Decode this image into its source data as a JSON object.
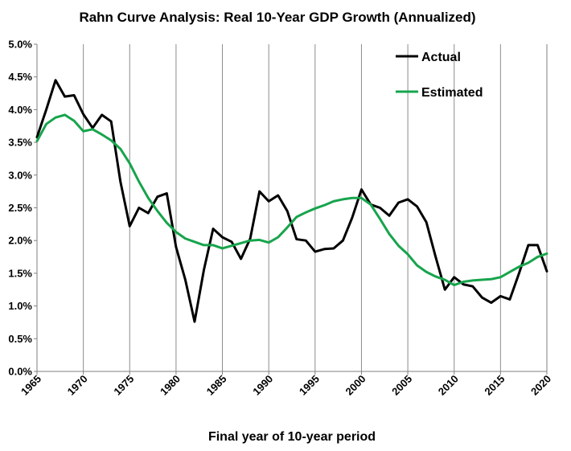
{
  "chart_data": {
    "type": "line",
    "title": "Rahn Curve Analysis: Real 10-Year GDP Growth (Annualized)",
    "xlabel": "Final year of 10-year period",
    "ylabel": "",
    "xlim": [
      1965,
      2020
    ],
    "ylim": [
      0,
      5
    ],
    "y_ticks": [
      "0.0%",
      "0.5%",
      "1.0%",
      "1.5%",
      "2.0%",
      "2.5%",
      "3.0%",
      "3.5%",
      "4.0%",
      "4.5%",
      "5.0%"
    ],
    "x_ticks": [
      "1965",
      "1970",
      "1975",
      "1980",
      "1985",
      "1990",
      "1995",
      "2000",
      "2005",
      "2010",
      "2015",
      "2020"
    ],
    "grid": "vertical",
    "legend_position": "top-right",
    "series": [
      {
        "name": "Actual",
        "color": "#000000",
        "x": [
          1965,
          1966,
          1967,
          1968,
          1969,
          1970,
          1971,
          1972,
          1973,
          1974,
          1975,
          1976,
          1977,
          1978,
          1979,
          1980,
          1981,
          1982,
          1983,
          1984,
          1985,
          1986,
          1987,
          1988,
          1989,
          1990,
          1991,
          1992,
          1993,
          1994,
          1995,
          1996,
          1997,
          1998,
          1999,
          2000,
          2001,
          2002,
          2003,
          2004,
          2005,
          2006,
          2007,
          2008,
          2009,
          2010,
          2011,
          2012,
          2013,
          2014,
          2015,
          2016,
          2017,
          2018,
          2019,
          2020
        ],
        "values": [
          3.58,
          4.0,
          4.45,
          4.2,
          4.22,
          3.93,
          3.72,
          3.92,
          3.82,
          2.9,
          2.22,
          2.5,
          2.42,
          2.67,
          2.72,
          1.9,
          1.4,
          0.76,
          1.55,
          2.18,
          2.05,
          1.98,
          1.72,
          2.03,
          2.75,
          2.6,
          2.69,
          2.45,
          2.02,
          2.0,
          1.83,
          1.87,
          1.88,
          2.0,
          2.35,
          2.78,
          2.55,
          2.5,
          2.38,
          2.58,
          2.63,
          2.52,
          2.28,
          1.75,
          1.25,
          1.44,
          1.33,
          1.3,
          1.13,
          1.05,
          1.15,
          1.1,
          1.5,
          1.93,
          1.93,
          1.53
        ]
      },
      {
        "name": "Estimated",
        "color": "#17a44c",
        "x": [
          1965,
          1966,
          1967,
          1968,
          1969,
          1970,
          1971,
          1972,
          1973,
          1974,
          1975,
          1976,
          1977,
          1978,
          1979,
          1980,
          1981,
          1982,
          1983,
          1984,
          1985,
          1986,
          1987,
          1988,
          1989,
          1990,
          1991,
          1992,
          1993,
          1994,
          1995,
          1996,
          1997,
          1998,
          1999,
          2000,
          2001,
          2002,
          2003,
          2004,
          2005,
          2006,
          2007,
          2008,
          2009,
          2010,
          2011,
          2012,
          2013,
          2014,
          2015,
          2016,
          2017,
          2018,
          2019,
          2020
        ],
        "values": [
          3.52,
          3.78,
          3.88,
          3.92,
          3.83,
          3.67,
          3.7,
          3.62,
          3.53,
          3.4,
          3.18,
          2.9,
          2.65,
          2.45,
          2.27,
          2.13,
          2.03,
          1.98,
          1.93,
          1.93,
          1.88,
          1.92,
          1.96,
          2.0,
          2.01,
          1.97,
          2.05,
          2.2,
          2.36,
          2.43,
          2.49,
          2.54,
          2.6,
          2.63,
          2.65,
          2.65,
          2.55,
          2.33,
          2.1,
          1.92,
          1.79,
          1.62,
          1.52,
          1.45,
          1.4,
          1.32,
          1.37,
          1.39,
          1.4,
          1.41,
          1.44,
          1.52,
          1.6,
          1.66,
          1.75,
          1.8
        ]
      }
    ]
  }
}
